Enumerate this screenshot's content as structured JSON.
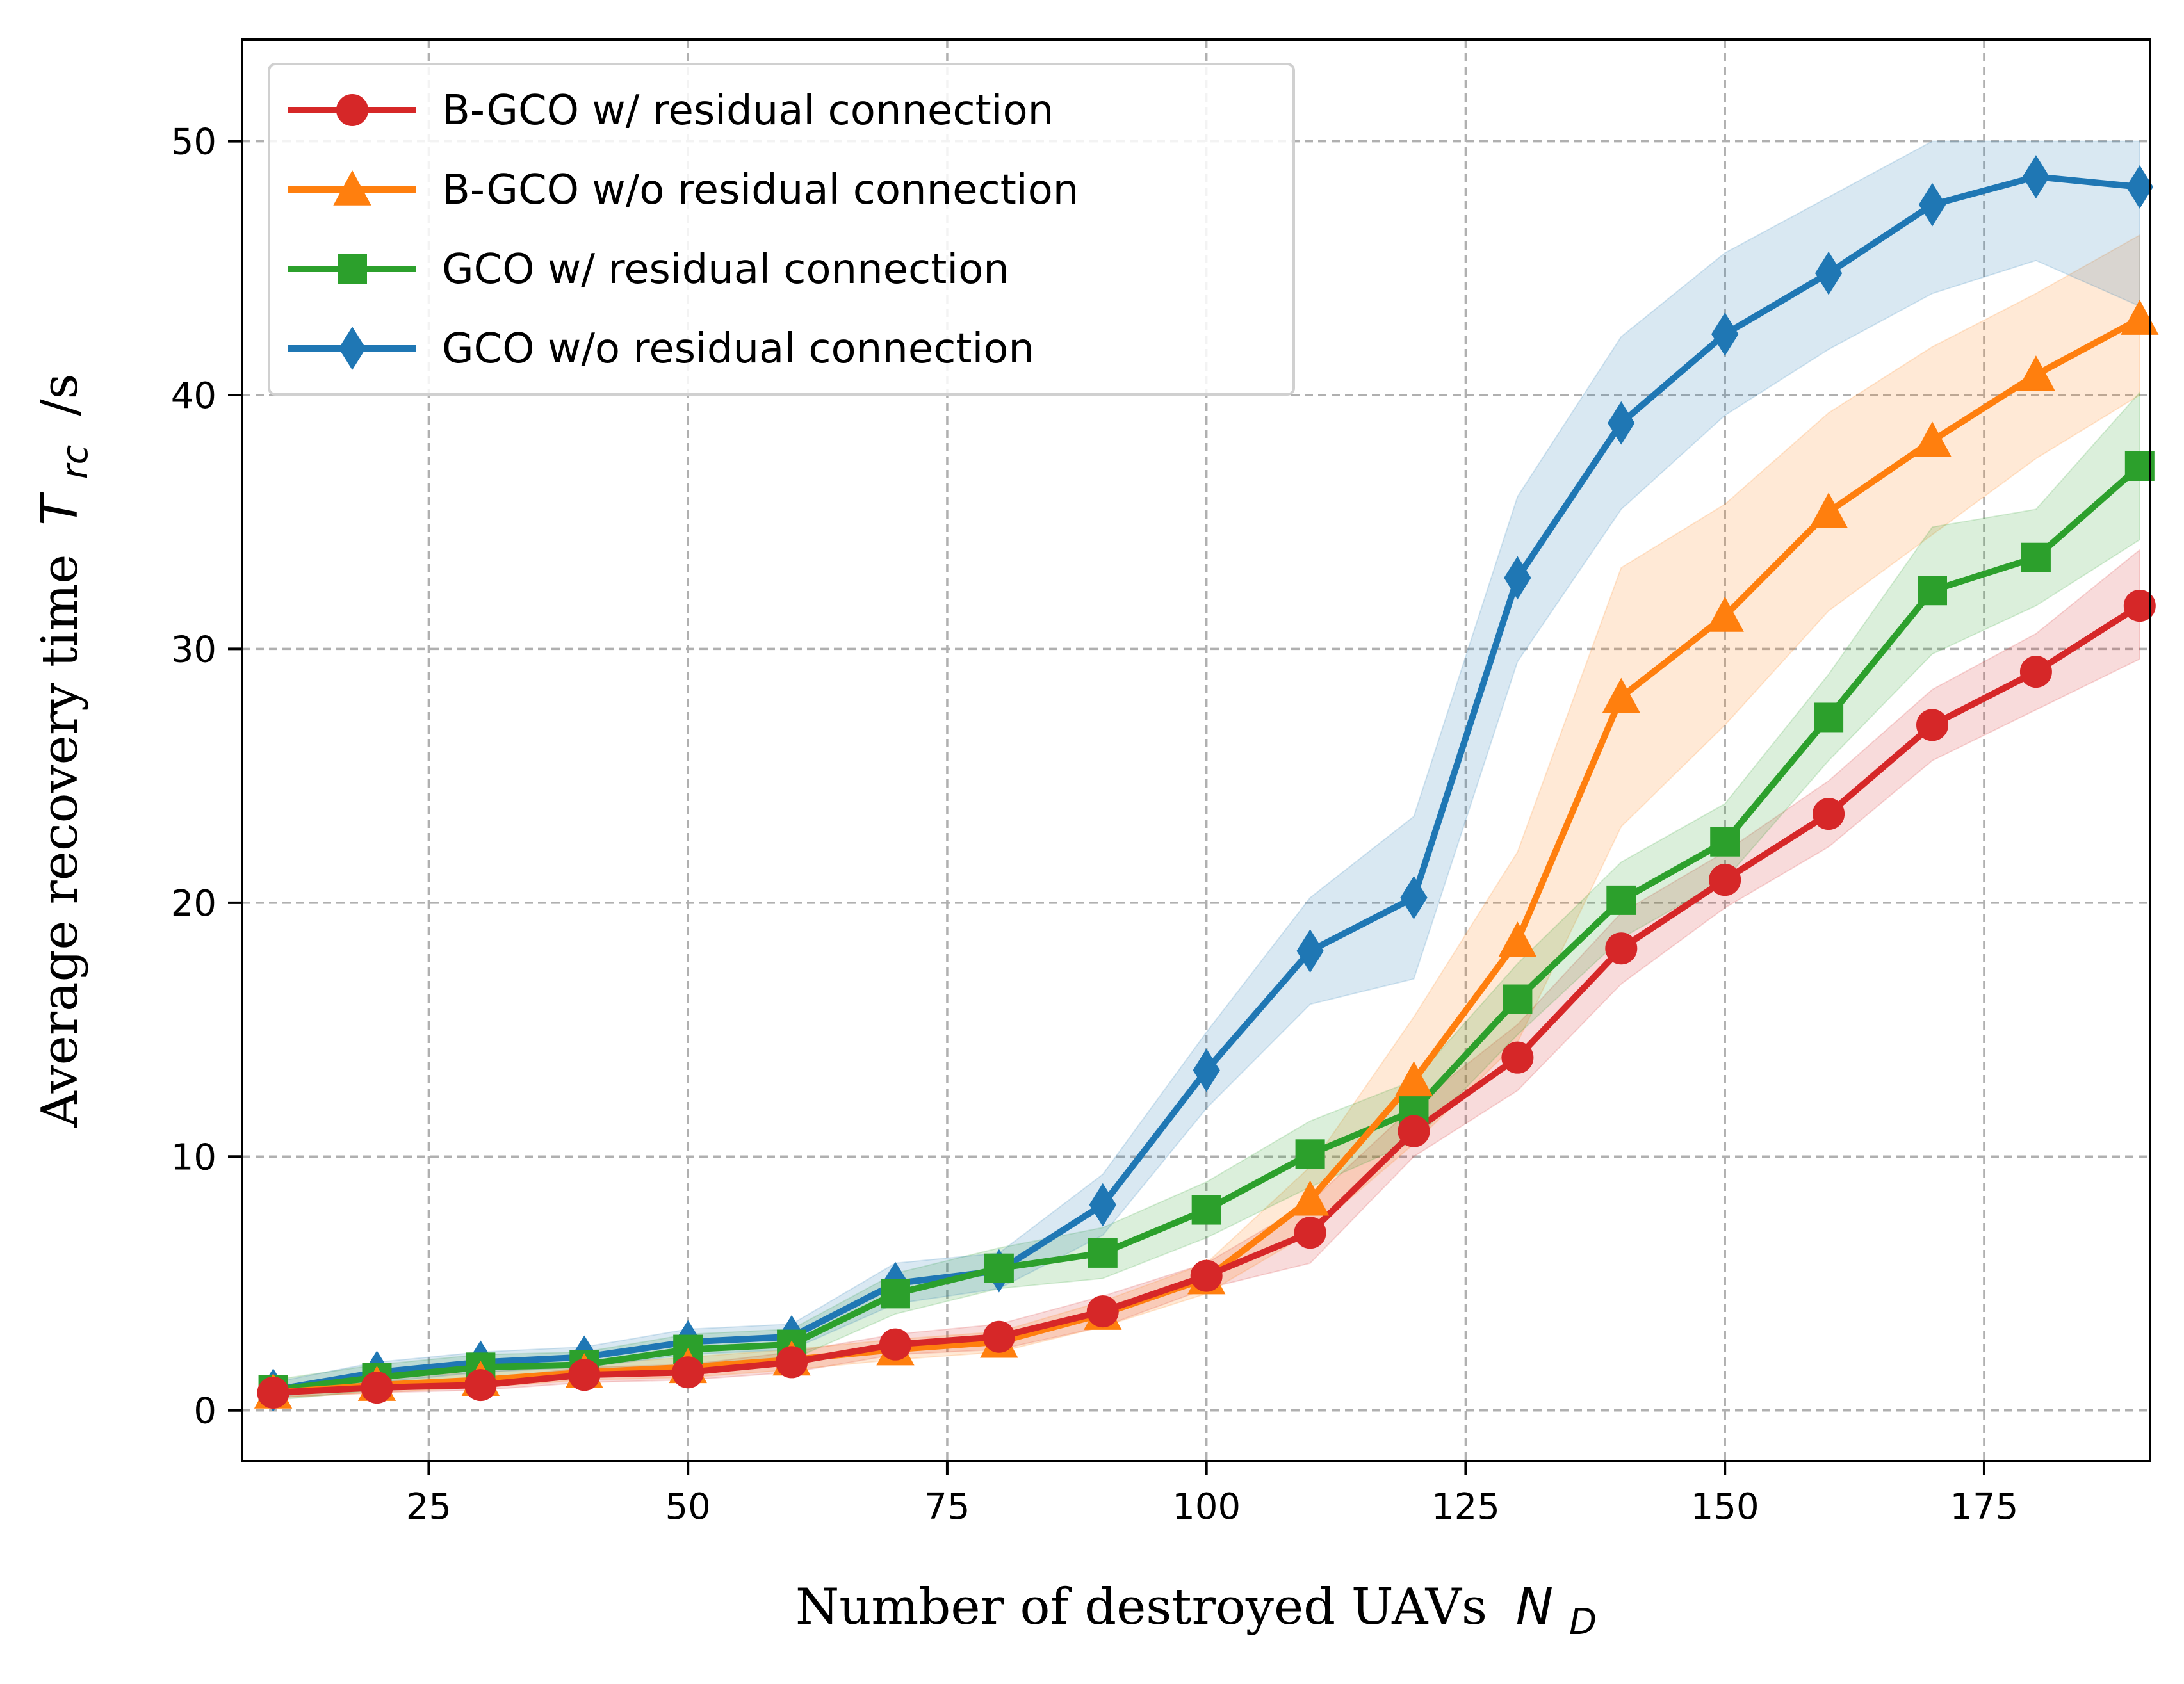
{
  "chart_data": {
    "type": "line",
    "title": "",
    "xlabel": "Number of destroyed UAVs",
    "xlabel_symbol": "N",
    "xlabel_subscript": "D",
    "ylabel": "Average recovery time",
    "ylabel_symbol": "T",
    "ylabel_subscript": "rc",
    "ylabel_unit": "/s",
    "xlim": [
      7,
      191
    ],
    "ylim": [
      -2,
      54
    ],
    "xticks": [
      "25",
      "50",
      "75",
      "100",
      "125",
      "150",
      "175"
    ],
    "yticks": [
      "0",
      "10",
      "20",
      "30",
      "40",
      "50"
    ],
    "xtick_values": [
      25,
      50,
      75,
      100,
      125,
      150,
      175
    ],
    "ytick_values": [
      0,
      10,
      20,
      30,
      40,
      50
    ],
    "grid": true,
    "legend_position": "upper-left",
    "x": [
      10,
      20,
      30,
      40,
      50,
      60,
      70,
      80,
      90,
      100,
      110,
      120,
      130,
      140,
      150,
      160,
      170,
      180,
      190
    ],
    "series": [
      {
        "name": "B-GCO w/ residual connection",
        "color": "#d62728",
        "marker": "circle",
        "values": [
          0.7,
          0.9,
          1.0,
          1.4,
          1.5,
          1.9,
          2.6,
          2.9,
          3.9,
          5.3,
          7.0,
          11.0,
          13.9,
          18.2,
          20.9,
          23.5,
          27.0,
          29.1,
          31.7
        ],
        "lower": [
          0.5,
          0.7,
          0.8,
          1.1,
          1.2,
          1.5,
          2.2,
          2.4,
          3.3,
          4.8,
          5.8,
          10.0,
          12.6,
          16.8,
          19.8,
          22.2,
          25.6,
          27.6,
          29.6
        ],
        "upper": [
          0.9,
          1.1,
          1.2,
          1.7,
          1.8,
          2.3,
          3.0,
          3.4,
          4.5,
          5.8,
          8.2,
          12.0,
          15.2,
          19.6,
          22.0,
          24.8,
          28.4,
          30.6,
          33.9
        ]
      },
      {
        "name": "B-GCO w/o residual connection",
        "color": "#ff7f0e",
        "marker": "triangle",
        "values": [
          0.7,
          1.0,
          1.2,
          1.5,
          1.7,
          2.0,
          2.4,
          2.7,
          3.8,
          5.2,
          8.3,
          13.0,
          18.5,
          28.1,
          31.3,
          35.4,
          38.2,
          40.8,
          43.0
        ],
        "lower": [
          0.5,
          0.7,
          0.9,
          1.2,
          1.3,
          1.6,
          2.0,
          2.3,
          3.3,
          4.6,
          7.0,
          10.5,
          14.5,
          23.0,
          27.0,
          31.5,
          34.5,
          37.5,
          40.0
        ],
        "upper": [
          0.9,
          1.3,
          1.5,
          1.8,
          2.1,
          2.4,
          2.8,
          3.1,
          4.3,
          5.8,
          9.6,
          15.5,
          22.0,
          33.2,
          35.7,
          39.3,
          41.9,
          44.0,
          46.3
        ]
      },
      {
        "name": "GCO w/ residual connection",
        "color": "#2ca02c",
        "marker": "square",
        "values": [
          0.8,
          1.3,
          1.7,
          1.8,
          2.4,
          2.6,
          4.6,
          5.6,
          6.2,
          7.9,
          10.1,
          11.8,
          16.2,
          20.1,
          22.4,
          27.3,
          32.3,
          33.6,
          37.2
        ],
        "lower": [
          0.4,
          0.8,
          1.2,
          1.3,
          1.8,
          2.0,
          3.8,
          4.8,
          5.2,
          6.8,
          8.8,
          10.6,
          14.8,
          18.6,
          20.9,
          25.6,
          29.8,
          31.7,
          34.3
        ],
        "upper": [
          1.2,
          1.8,
          2.2,
          2.3,
          3.0,
          3.2,
          5.4,
          6.4,
          7.2,
          9.0,
          11.4,
          13.0,
          17.6,
          21.6,
          23.9,
          29.0,
          34.8,
          35.5,
          40.1
        ]
      },
      {
        "name": "GCO w/o residual connection",
        "color": "#1f77b4",
        "marker": "thin-diamond",
        "values": [
          0.8,
          1.5,
          1.9,
          2.1,
          2.7,
          2.9,
          5.0,
          5.5,
          8.1,
          13.4,
          18.1,
          20.2,
          32.8,
          38.9,
          42.4,
          44.8,
          47.5,
          48.6,
          48.2
        ],
        "lower": [
          0.5,
          1.1,
          1.5,
          1.7,
          2.2,
          2.4,
          4.2,
          4.8,
          6.9,
          11.9,
          16.0,
          17.0,
          29.5,
          35.5,
          39.2,
          41.8,
          44.0,
          45.3,
          43.5
        ],
        "upper": [
          1.1,
          1.9,
          2.3,
          2.5,
          3.2,
          3.4,
          5.8,
          6.2,
          9.3,
          14.9,
          20.2,
          23.4,
          36.0,
          42.3,
          45.6,
          47.8,
          50.0,
          50.0,
          50.0
        ]
      }
    ]
  }
}
